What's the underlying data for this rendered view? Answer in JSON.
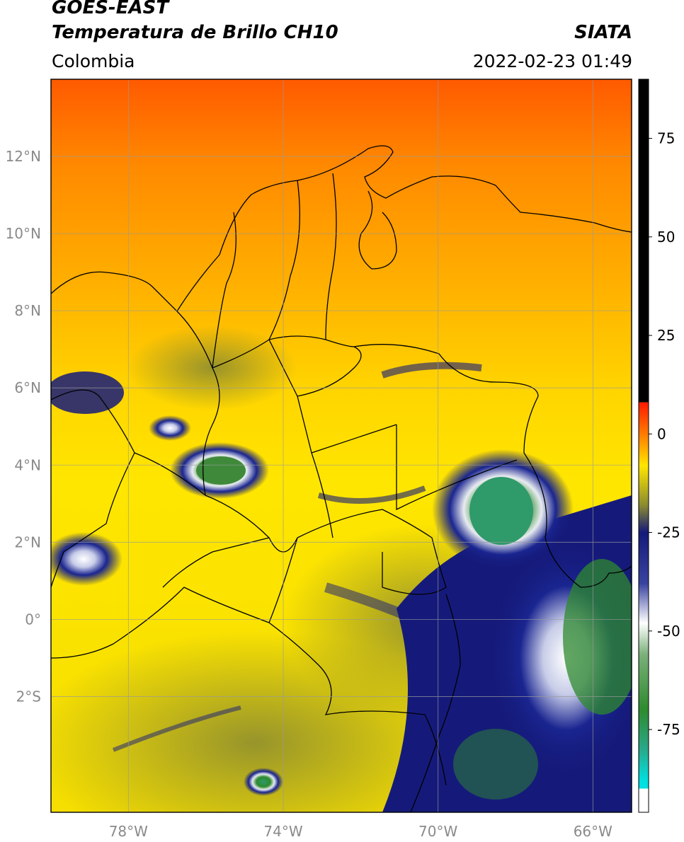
{
  "header": {
    "satellite": "GOES-EAST",
    "product": "Temperatura de Brillo CH10",
    "organization": "SIATA",
    "region": "Colombia",
    "timestamp": "2022-02-23 01:49"
  },
  "map": {
    "lon_range": [
      -80,
      -65
    ],
    "lat_range": [
      -5,
      14
    ],
    "lat_ticks": [
      {
        "value": 12,
        "label": "12°N"
      },
      {
        "value": 10,
        "label": "10°N"
      },
      {
        "value": 8,
        "label": "8°N"
      },
      {
        "value": 6,
        "label": "6°N"
      },
      {
        "value": 4,
        "label": "4°N"
      },
      {
        "value": 2,
        "label": "2°N"
      },
      {
        "value": 0,
        "label": "0°"
      },
      {
        "value": -2,
        "label": "2°S"
      }
    ],
    "lon_ticks": [
      {
        "value": -78,
        "label": "78°W"
      },
      {
        "value": -74,
        "label": "74°W"
      },
      {
        "value": -70,
        "label": "70°W"
      },
      {
        "value": -66,
        "label": "66°W"
      }
    ],
    "gridlines": true
  },
  "colorbar": {
    "range": [
      -96,
      90
    ],
    "ticks": [
      {
        "value": 75,
        "label": "75"
      },
      {
        "value": 50,
        "label": "50"
      },
      {
        "value": 25,
        "label": "25"
      },
      {
        "value": 0,
        "label": "0"
      },
      {
        "value": -25,
        "label": "-25"
      },
      {
        "value": -50,
        "label": "-50"
      },
      {
        "value": -75,
        "label": "-75"
      }
    ],
    "colors": {
      "black": "#000000",
      "red": "#ff1a00",
      "orange": "#ff9900",
      "yellow": "#ffe600",
      "olive": "#8c8c30",
      "navy": "#151a7a",
      "white": "#ffffff",
      "green": "#2e8a2e",
      "cyan": "#00e0e0"
    }
  }
}
